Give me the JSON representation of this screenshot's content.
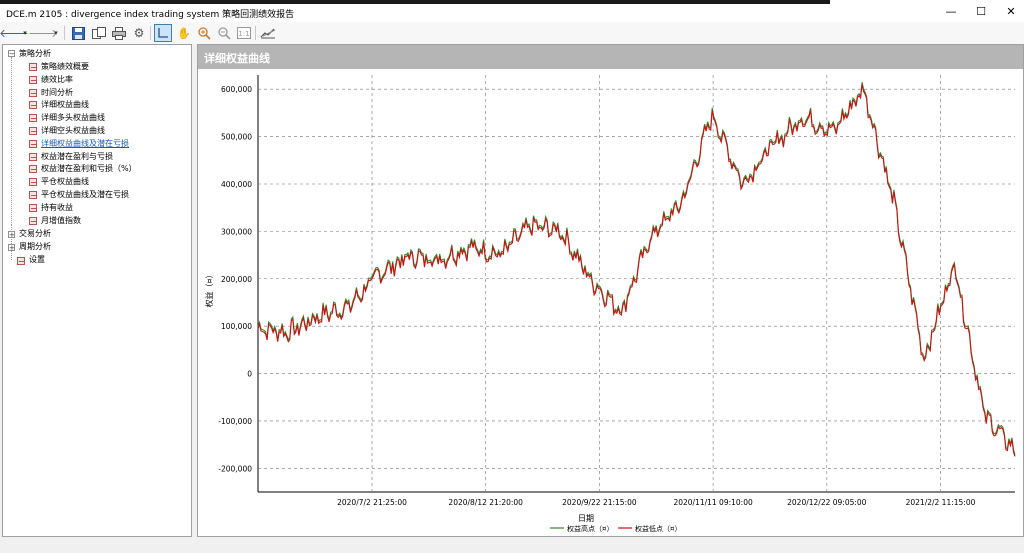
{
  "window": {
    "title": "DCE.m 2105 : divergence index trading system 策略回测绩效报告",
    "minimize_glyph": "—",
    "maximize_glyph": "☐",
    "close_glyph": "✕"
  },
  "toolbar": {
    "icons": [
      "back-icon",
      "dropdown-icon",
      "forward-icon",
      "dropdown-icon",
      "save-icon",
      "copy-icon",
      "print-icon",
      "settings-icon",
      "crosshair-icon",
      "hand-icon",
      "zoom-in-icon",
      "zoom-out-icon",
      "zoom-reset-icon",
      "chart-style-icon"
    ]
  },
  "tree": {
    "root_strategy": "策略分析",
    "strategy_items": [
      "策略绩效概要",
      "绩效比率",
      "时间分析",
      "详细权益曲线",
      "详细多头权益曲线",
      "详细空头权益曲线",
      "详细权益曲线及潜在亏损",
      "权益潜在盈利与亏损",
      "权益潜在盈利和亏损（%）",
      "平仓权益曲线",
      "平仓权益曲线及潜在亏损",
      "持有收益",
      "月增值指数"
    ],
    "selected_index": 6,
    "trade_analysis": "交易分析",
    "period_analysis": "周期分析",
    "settings": "设置"
  },
  "panel": {
    "title": "详细权益曲线"
  },
  "chart_data": {
    "type": "line",
    "title": "",
    "xlabel": "日期",
    "ylabel": "权益（¤）",
    "ylim": [
      -250000,
      630000
    ],
    "y_ticks": [
      "600,000",
      "500,000",
      "400,000",
      "300,000",
      "200,000",
      "100,000",
      "0",
      "-100,000",
      "-200,000"
    ],
    "x_tick_labels": [
      "2020/7/2 21:25:00",
      "2020/8/12 21:20:00",
      "2020/9/22 21:15:00",
      "2020/11/11 09:10:00",
      "2020/12/22 09:05:00",
      "2021/2/2 11:15:00"
    ],
    "grid": true,
    "legend_position": "bottom",
    "series": [
      {
        "name": "权益高点（¤）",
        "color": "#2e8b2e"
      },
      {
        "name": "权益低点（¤）",
        "color": "#cc1111"
      }
    ],
    "x": [
      0,
      4,
      8,
      12,
      16,
      20,
      24,
      28,
      32,
      36,
      40,
      44,
      48,
      52,
      56,
      60,
      64,
      68,
      72,
      76,
      80,
      84,
      88,
      92,
      96,
      100
    ],
    "values": [
      95000,
      85000,
      120000,
      140000,
      210000,
      245000,
      240000,
      265000,
      250000,
      310000,
      300000,
      195000,
      130000,
      290000,
      360000,
      545000,
      400000,
      480000,
      540000,
      510000,
      600000,
      360000,
      30000,
      230000,
      -90000,
      -165000
    ]
  }
}
